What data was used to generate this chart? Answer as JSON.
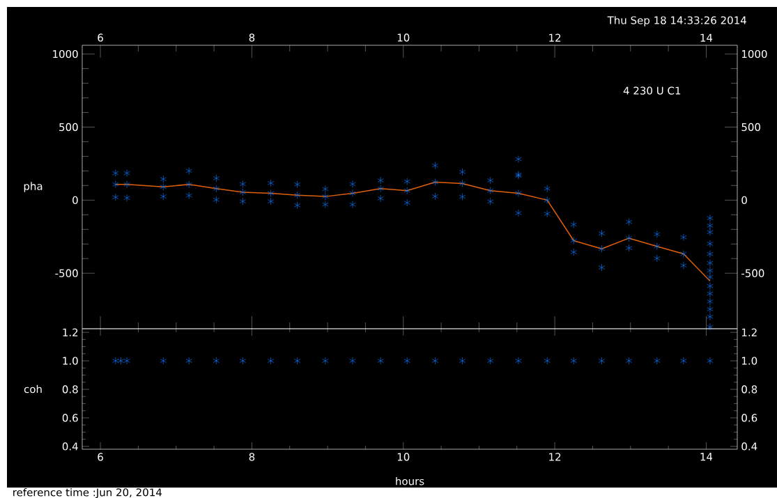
{
  "chart_data": [
    {
      "type": "scatter",
      "ylabel": "pha",
      "xlim": [
        5.76,
        14.41
      ],
      "xticks": [
        6,
        8,
        10,
        12,
        14
      ],
      "ylim": [
        -880,
        1060
      ],
      "yticks": [
        -500,
        0,
        500,
        1000
      ],
      "y2lim": [
        -880,
        1060
      ],
      "y2ticks": [
        -500,
        0,
        500,
        1000
      ],
      "annotations": [
        "4 230 U C1",
        "Thu Sep 18 14:33:26 2014"
      ],
      "series": [
        {
          "color": "#0a78ff",
          "marker": "cross",
          "x": [
            6.2,
            6.2,
            6.2,
            6.35,
            6.35,
            6.35,
            6.83,
            6.83,
            6.83,
            7.17,
            7.17,
            7.17,
            7.53,
            7.53,
            7.53,
            7.88,
            7.88,
            7.88,
            8.25,
            8.25,
            8.25,
            8.6,
            8.6,
            8.6,
            8.97,
            8.97,
            8.97,
            9.33,
            9.33,
            9.33,
            9.7,
            9.7,
            9.7,
            10.05,
            10.05,
            10.05,
            10.42,
            10.42,
            10.42,
            10.78,
            10.78,
            10.78,
            11.15,
            11.15,
            11.15,
            11.52,
            11.52,
            11.52,
            11.52,
            11.52,
            11.9,
            11.9,
            11.9,
            12.25,
            12.25,
            12.25,
            12.62,
            12.62,
            12.62,
            12.98,
            12.98,
            12.98,
            13.35,
            13.35,
            13.35,
            13.7,
            13.7,
            13.7,
            14.05,
            14.05,
            14.05,
            14.05,
            14.05,
            14.05,
            14.05,
            14.05,
            14.05,
            14.05,
            14.05,
            14.05,
            14.05,
            14.05
          ],
          "values": [
            185,
            108,
            20,
            185,
            108,
            15,
            144,
            91,
            25,
            200,
            108,
            32,
            150,
            79,
            3,
            110,
            54,
            -8,
            117,
            47,
            -8,
            108,
            34,
            -35,
            76,
            25,
            -30,
            110,
            47,
            -30,
            135,
            79,
            12,
            128,
            65,
            -18,
            237,
            123,
            26,
            193,
            114,
            23,
            135,
            65,
            -9,
            281,
            175,
            167,
            47,
            -88,
            79,
            0,
            -93,
            -167,
            -277,
            -356,
            -228,
            -333,
            -461,
            -149,
            -260,
            -328,
            -233,
            -316,
            -398,
            -254,
            -368,
            -447,
            -123,
            -175,
            -219,
            -298,
            -368,
            -430,
            -482,
            -526,
            -588,
            -640,
            -693,
            -746,
            -798,
            -868
          ]
        },
        {
          "type": "line",
          "marker": "none",
          "color": "#e0600a",
          "x": [
            6.2,
            6.35,
            6.83,
            7.17,
            7.53,
            7.88,
            8.25,
            8.6,
            8.97,
            9.33,
            9.7,
            10.05,
            10.42,
            10.78,
            11.15,
            11.52,
            11.9,
            12.25,
            12.62,
            12.98,
            13.35,
            13.7,
            14.05
          ],
          "values": [
            108,
            108,
            91,
            108,
            79,
            54,
            47,
            34,
            25,
            47,
            79,
            65,
            123,
            114,
            65,
            47,
            0,
            -277,
            -333,
            -260,
            -316,
            -368,
            -553
          ]
        }
      ]
    },
    {
      "type": "scatter",
      "ylabel": "coh",
      "xlabel": "hours",
      "xlim": [
        5.76,
        14.41
      ],
      "xticks": [
        6,
        8,
        10,
        12,
        14
      ],
      "ylim": [
        0.38,
        1.225
      ],
      "yticks": [
        0.4,
        0.6,
        0.8,
        {
          "value": 1,
          "label": "1.0"
        },
        1.2
      ],
      "y2lim": [
        0.38,
        1.225
      ],
      "y2ticks": [
        0.4,
        0.6,
        0.8,
        {
          "value": 1,
          "label": "1.0"
        },
        1.2
      ],
      "marker": "cross",
      "annotations": [
        "reference time :Jun 20, 2014"
      ],
      "series": [
        {
          "color": "#0a78ff",
          "x": [
            6.2,
            6.27,
            6.35,
            6.83,
            7.17,
            7.53,
            7.88,
            8.25,
            8.6,
            8.97,
            9.33,
            9.7,
            10.05,
            10.42,
            10.78,
            11.15,
            11.52,
            11.9,
            12.25,
            12.62,
            12.98,
            13.35,
            13.7,
            14.05
          ],
          "values": [
            1,
            1,
            1,
            1,
            1,
            1,
            1,
            1,
            1,
            1,
            1,
            1,
            1,
            1,
            1,
            1,
            1,
            1,
            1,
            1,
            1,
            1,
            1,
            1
          ]
        }
      ]
    }
  ]
}
